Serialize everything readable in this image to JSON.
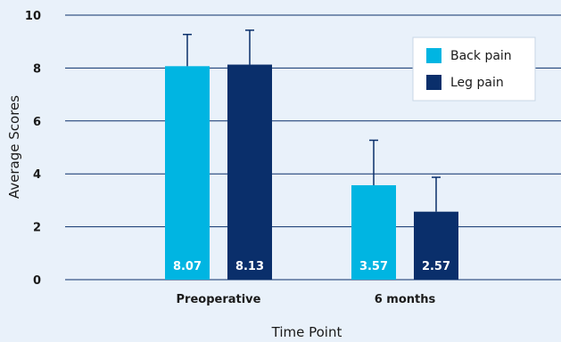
{
  "chart_data": {
    "type": "bar",
    "categories": [
      "Preoperative",
      "6 months"
    ],
    "series": [
      {
        "name": "Back pain",
        "values": [
          8.07,
          3.57
        ],
        "error": [
          1.2,
          1.7
        ],
        "color": "#00b5e2",
        "labels": [
          "8.07",
          "3.57"
        ]
      },
      {
        "name": "Leg pain",
        "values": [
          8.13,
          2.57
        ],
        "error": [
          1.3,
          1.3
        ],
        "color": "#0a2f6b",
        "labels": [
          "8.13",
          "2.57"
        ]
      }
    ],
    "xlabel": "Time Point",
    "ylabel": "Average Scores",
    "ylim": [
      0,
      10
    ],
    "yticks": [
      0,
      2,
      4,
      6,
      8,
      10
    ],
    "grid": true,
    "legend_position": "top-right",
    "background_color": "#e9f1fa",
    "grid_color": "#0a2f6b"
  }
}
